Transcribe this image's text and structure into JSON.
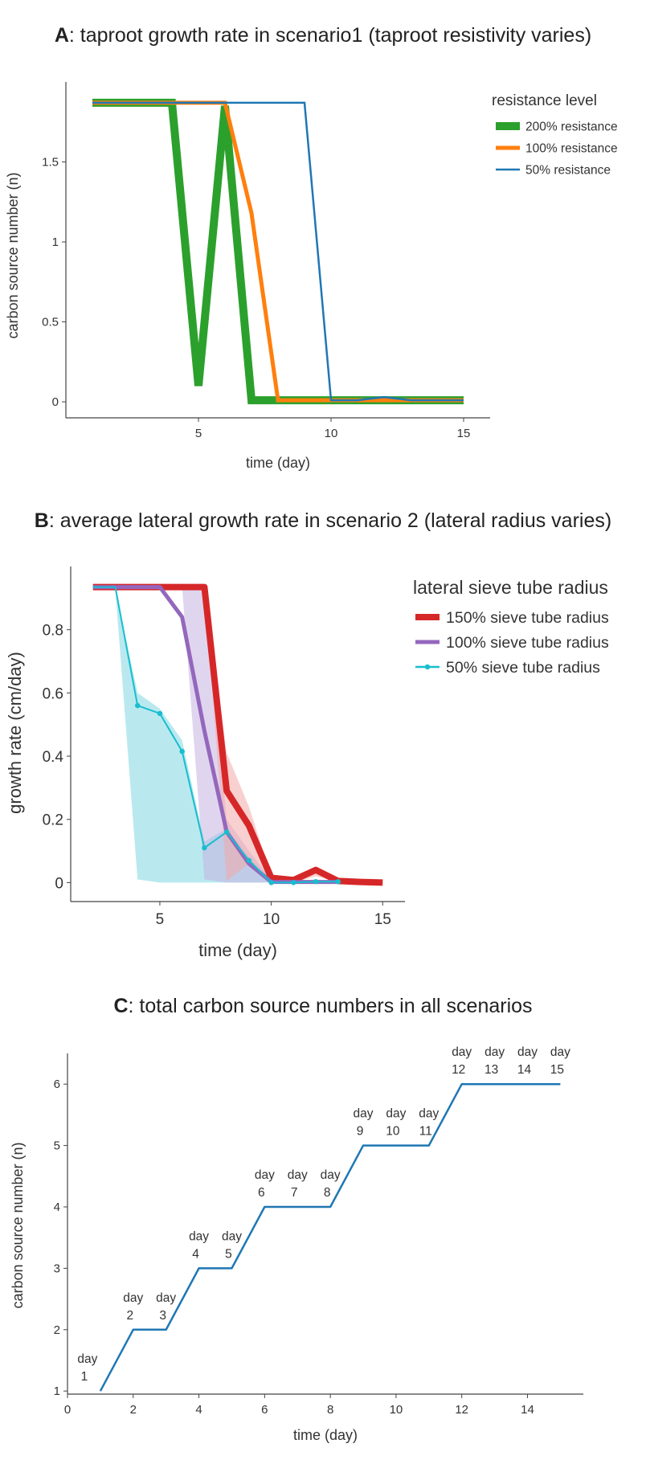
{
  "panels": {
    "a": {
      "title_bold": "A",
      "title_rest": ": taproot growth rate in scenario1 (taproot resistivity varies)"
    },
    "b": {
      "title_bold": "B",
      "title_rest": ": average lateral growth rate in scenario 2 (lateral radius varies)"
    },
    "c": {
      "title_bold": "C",
      "title_rest": ": total carbon source numbers in all scenarios"
    }
  },
  "chart_data": [
    {
      "id": "a",
      "type": "line",
      "title": "A: taproot growth rate in scenario1 (taproot resistivity varies)",
      "xlabel": "time (day)",
      "ylabel": "carbon source number (n)",
      "xlim": [
        0,
        16
      ],
      "ylim": [
        -0.1,
        2.0
      ],
      "xticks": [
        5,
        10,
        15
      ],
      "yticks": [
        0,
        0.5,
        1,
        1.5
      ],
      "ytick_labels": [
        "0",
        "0.5",
        "1",
        "1.5"
      ],
      "grid": false,
      "legend_title": "resistance level",
      "legend_position": "top-right",
      "series": [
        {
          "name": "200% resistance",
          "color": "#2ca02c",
          "style": "thick",
          "x": [
            1,
            2,
            3,
            4,
            5,
            6,
            7,
            8,
            9,
            10,
            11,
            12,
            13,
            14,
            15
          ],
          "y": [
            1.87,
            1.87,
            1.87,
            1.87,
            0.1,
            1.85,
            0.01,
            0.01,
            0.01,
            0.01,
            0.01,
            0.01,
            0.01,
            0.01,
            0.01
          ]
        },
        {
          "name": "100% resistance",
          "color": "#ff7f0e",
          "style": "medium",
          "x": [
            1,
            2,
            3,
            4,
            5,
            6,
            7,
            8,
            9,
            10,
            11,
            12,
            13,
            14,
            15
          ],
          "y": [
            1.87,
            1.87,
            1.87,
            1.87,
            1.87,
            1.87,
            1.18,
            0.01,
            0.01,
            0.01,
            0.01,
            0.01,
            0.01,
            0.01,
            0.01
          ]
        },
        {
          "name": "50% resistance",
          "color": "#1f77b4",
          "style": "thin",
          "x": [
            1,
            2,
            3,
            4,
            5,
            6,
            7,
            8,
            9,
            10,
            11,
            12,
            13,
            14,
            15
          ],
          "y": [
            1.87,
            1.87,
            1.87,
            1.87,
            1.87,
            1.87,
            1.87,
            1.87,
            1.87,
            0.01,
            0.01,
            0.03,
            0.01,
            0.01,
            0.01
          ]
        }
      ]
    },
    {
      "id": "b",
      "type": "line",
      "title": "B: average lateral growth rate in scenario 2 (lateral radius varies)",
      "xlabel": "time (day)",
      "ylabel": "growth rate (cm/day)",
      "xlim": [
        1,
        16
      ],
      "ylim": [
        -0.06,
        1.0
      ],
      "xticks": [
        5,
        10,
        15
      ],
      "yticks": [
        0,
        0.2,
        0.4,
        0.6,
        0.8
      ],
      "ytick_labels": [
        "0",
        "0.2",
        "0.4",
        "0.6",
        "0.8"
      ],
      "grid": false,
      "legend_title": "lateral sieve tube radius",
      "legend_position": "top-right",
      "bands": [
        {
          "series": "50% sieve tube radius",
          "color": "#7fd7e2",
          "x": [
            3,
            4,
            5,
            6,
            7,
            8,
            9,
            10,
            11,
            12,
            13
          ],
          "upper": [
            0.93,
            0.6,
            0.55,
            0.45,
            0.13,
            0.17,
            0.08,
            0.01,
            0.003,
            0.003,
            0.003
          ],
          "lower": [
            0.93,
            0.01,
            0.0,
            0.0,
            0.0,
            0.0,
            0.0,
            0.0,
            0.0,
            0.0,
            0.0
          ]
        },
        {
          "series": "100% sieve tube radius",
          "color": "#c6b3e0",
          "x": [
            5,
            6,
            7,
            8,
            9,
            10,
            11,
            12,
            13
          ],
          "upper": [
            0.935,
            0.935,
            0.935,
            0.2,
            0.1,
            0.01,
            0.005,
            0.01,
            0.005
          ],
          "lower": [
            0.935,
            0.935,
            0.01,
            0.0,
            0.0,
            0.0,
            0.0,
            0.0,
            0.0
          ]
        },
        {
          "series": "150% sieve tube radius",
          "color": "#f2a9a9",
          "x": [
            7,
            8,
            9,
            10,
            11,
            12,
            13
          ],
          "upper": [
            0.935,
            0.41,
            0.24,
            0.02,
            0.012,
            0.05,
            0.01
          ],
          "lower": [
            0.935,
            0.005,
            0.06,
            0.002,
            0.0,
            0.02,
            0.0
          ]
        }
      ],
      "series": [
        {
          "name": "150% sieve tube radius",
          "color": "#d62728",
          "style": "thick",
          "x": [
            2,
            3,
            4,
            5,
            6,
            7,
            8,
            9,
            10,
            11,
            12,
            13,
            14,
            15
          ],
          "y": [
            0.935,
            0.935,
            0.935,
            0.935,
            0.935,
            0.935,
            0.29,
            0.18,
            0.015,
            0.008,
            0.04,
            0.005,
            0.002,
            0.0
          ]
        },
        {
          "name": "100% sieve tube radius",
          "color": "#9467bd",
          "style": "medium",
          "x": [
            2,
            3,
            4,
            5,
            6,
            7,
            8,
            9,
            10,
            11,
            12,
            13
          ],
          "y": [
            0.935,
            0.935,
            0.935,
            0.935,
            0.84,
            0.48,
            0.16,
            0.06,
            0.002,
            0.002,
            0.002,
            0.002
          ]
        },
        {
          "name": "50% sieve tube radius",
          "color": "#17becf",
          "style": "thin_markers",
          "x": [
            2,
            3,
            4,
            5,
            6,
            7,
            8,
            9,
            10,
            11,
            12,
            13
          ],
          "y": [
            0.935,
            0.935,
            0.56,
            0.535,
            0.415,
            0.11,
            0.16,
            0.07,
            0.0,
            0.0,
            0.003,
            0.003
          ]
        }
      ]
    },
    {
      "id": "c",
      "type": "line",
      "title": "C: total carbon source numbers in all scenarios",
      "xlabel": "time (day)",
      "ylabel": "carbon source number (n)",
      "xlim": [
        0,
        15.7
      ],
      "ylim": [
        0.95,
        6.5
      ],
      "xticks": [
        0,
        2,
        4,
        6,
        8,
        10,
        12,
        14
      ],
      "yticks": [
        1,
        2,
        3,
        4,
        5,
        6
      ],
      "grid": false,
      "series": [
        {
          "name": "",
          "color": "#1f77b4",
          "x": [
            1,
            2,
            3,
            4,
            5,
            6,
            7,
            8,
            9,
            10,
            11,
            12,
            13,
            14,
            15
          ],
          "y": [
            1,
            2,
            2,
            3,
            3,
            4,
            4,
            4,
            5,
            5,
            5,
            6,
            6,
            6,
            6
          ]
        }
      ],
      "annotations": [
        {
          "x": 1,
          "y": 1,
          "line1": "day",
          "line2": "1"
        },
        {
          "x": 2,
          "y": 2,
          "line1": "day",
          "line2": "2"
        },
        {
          "x": 3,
          "y": 2,
          "line1": "day",
          "line2": "3"
        },
        {
          "x": 4,
          "y": 3,
          "line1": "day",
          "line2": "4"
        },
        {
          "x": 5,
          "y": 3,
          "line1": "day",
          "line2": "5"
        },
        {
          "x": 6,
          "y": 4,
          "line1": "day",
          "line2": "6"
        },
        {
          "x": 7,
          "y": 4,
          "line1": "day",
          "line2": "7"
        },
        {
          "x": 8,
          "y": 4,
          "line1": "day",
          "line2": "8"
        },
        {
          "x": 9,
          "y": 5,
          "line1": "day",
          "line2": "9"
        },
        {
          "x": 10,
          "y": 5,
          "line1": "day",
          "line2": "10"
        },
        {
          "x": 11,
          "y": 5,
          "line1": "day",
          "line2": "11"
        },
        {
          "x": 12,
          "y": 6,
          "line1": "day",
          "line2": "12"
        },
        {
          "x": 13,
          "y": 6,
          "line1": "day",
          "line2": "13"
        },
        {
          "x": 14,
          "y": 6,
          "line1": "day",
          "line2": "14"
        },
        {
          "x": 15,
          "y": 6,
          "line1": "day",
          "line2": "15"
        }
      ]
    }
  ]
}
